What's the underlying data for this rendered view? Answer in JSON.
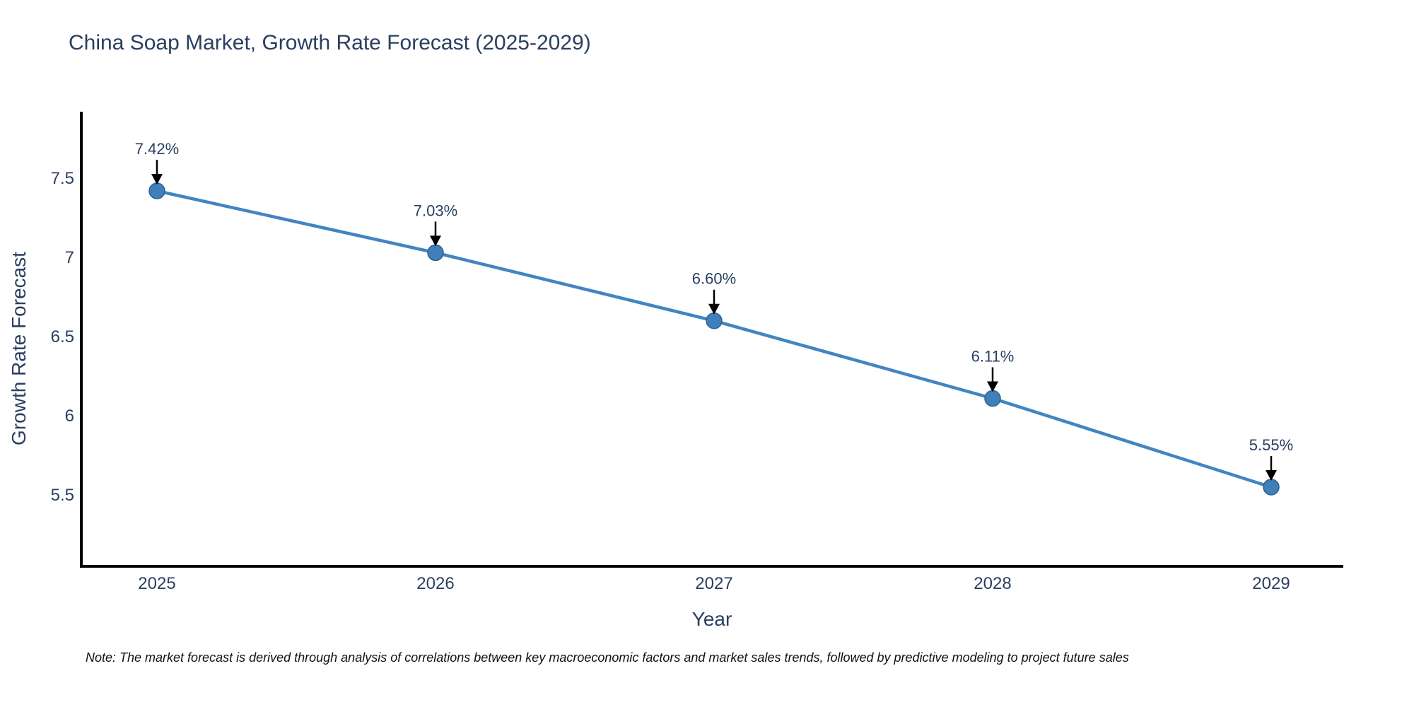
{
  "title": "China Soap Market, Growth Rate Forecast (2025-2029)",
  "note": "Note: The market forecast is derived through analysis of correlations between key macroeconomic factors and market sales trends, followed by predictive modeling to project future sales",
  "chart_data": {
    "type": "line",
    "title": "China Soap Market, Growth Rate Forecast (2025-2029)",
    "xlabel": "Year",
    "ylabel": "Growth Rate Forecast",
    "categories": [
      "2025",
      "2026",
      "2027",
      "2028",
      "2029"
    ],
    "values": [
      7.42,
      7.03,
      6.6,
      6.11,
      5.55
    ],
    "point_labels": [
      "7.42%",
      "7.03%",
      "6.60%",
      "6.11%",
      "5.55%"
    ],
    "ytick_values": [
      7.5,
      7.0,
      6.5,
      6.0,
      5.5
    ],
    "ytick_labels": [
      "7.5",
      "7",
      "6.5",
      "6",
      "5.5"
    ],
    "ylim": [
      5.05,
      7.92
    ],
    "grid": false,
    "legend": "none",
    "colors": {
      "line": "#4285c0",
      "marker_fill": "#3f7fba",
      "marker_edge": "#2f618f",
      "axis": "#000000",
      "tick_text": "#2a3f5f",
      "annotation_text": "#2a3f5f",
      "arrow": "#000000"
    }
  }
}
